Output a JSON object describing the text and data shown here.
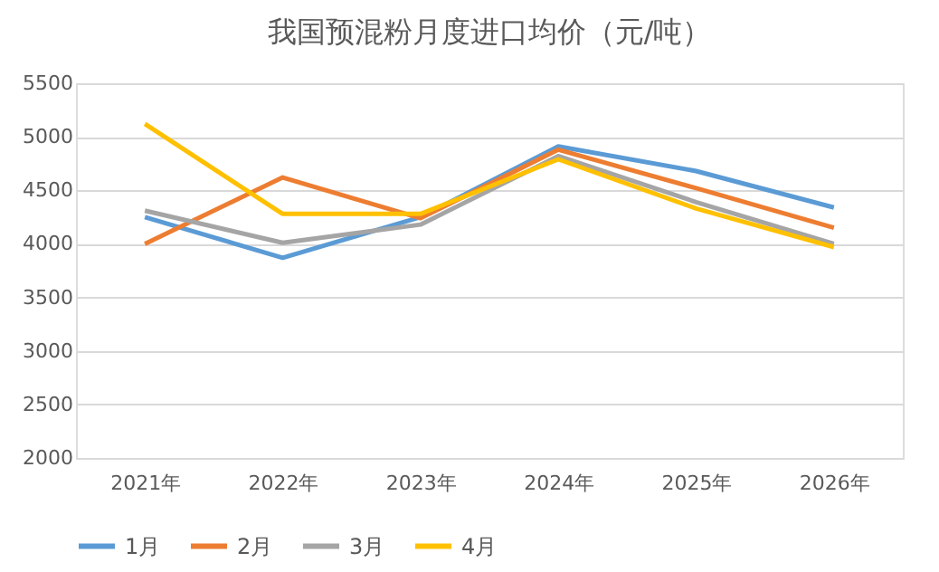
{
  "chart_data": {
    "type": "line",
    "title": "我国预混粉月度进口均价（元/吨）",
    "categories": [
      "2021年",
      "2022年",
      "2023年",
      "2024年",
      "2025年",
      "2026年"
    ],
    "series": [
      {
        "name": "1月",
        "color": "#5b9bd5",
        "values": [
          4250,
          3870,
          4250,
          4910,
          4680,
          4340
        ]
      },
      {
        "name": "2月",
        "color": "#ed7d31",
        "values": [
          4000,
          4620,
          4240,
          4880,
          4520,
          4150
        ]
      },
      {
        "name": "3月",
        "color": "#a5a5a5",
        "values": [
          4310,
          4010,
          4180,
          4820,
          4390,
          4000
        ]
      },
      {
        "name": "4月",
        "color": "#ffc000",
        "values": [
          5120,
          4280,
          4280,
          4790,
          4330,
          3970
        ]
      }
    ],
    "ylim": [
      2000,
      5500
    ],
    "yticks": [
      2000,
      2500,
      3000,
      3500,
      4000,
      4500,
      5000,
      5500
    ],
    "grid": "y",
    "legend": "bottom",
    "marker": "none",
    "line_style": "solid"
  }
}
